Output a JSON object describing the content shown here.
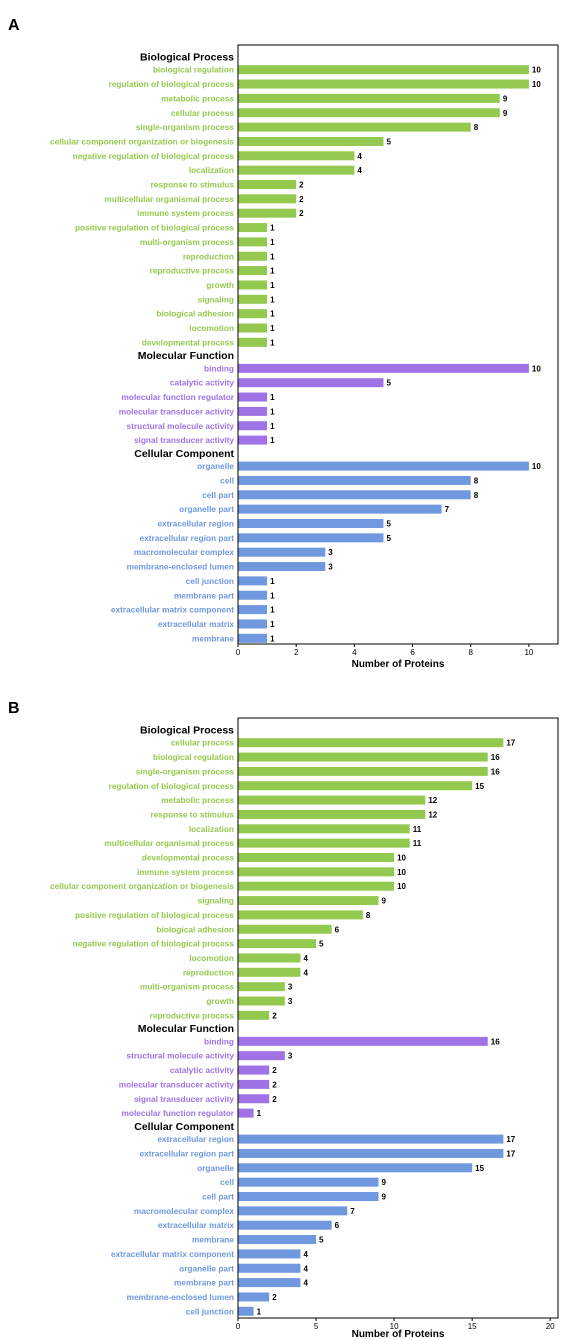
{
  "colors": {
    "Biological Process": "#94c94f",
    "Molecular Function": "#9f72e6",
    "Cellular Component": "#6f98df"
  },
  "chart_data": [
    {
      "panel_label": "A",
      "type": "bar",
      "orientation": "horizontal",
      "xlabel": "Number of Proteins",
      "xlim": [
        0,
        11
      ],
      "xticks": [
        0,
        2,
        4,
        6,
        8,
        10
      ],
      "groups": [
        {
          "name": "Biological Process",
          "categories": [
            "biological regulation",
            "regulation of biological process",
            "metabolic process",
            "cellular process",
            "single-organism process",
            "cellular component organization or biogenesis",
            "negative regulation of biological process",
            "localization",
            "response to stimulus",
            "multicellular organismal process",
            "immune system process",
            "positive regulation of biological process",
            "multi-organism process",
            "reproduction",
            "reproductive process",
            "growth",
            "signaling",
            "biological adhesion",
            "locomotion",
            "developmental process"
          ],
          "values": [
            10,
            10,
            9,
            9,
            8,
            5,
            4,
            4,
            2,
            2,
            2,
            1,
            1,
            1,
            1,
            1,
            1,
            1,
            1,
            1
          ]
        },
        {
          "name": "Molecular Function",
          "categories": [
            "binding",
            "catalytic activity",
            "molecular function regulator",
            "molecular transducer activity",
            "structural molecule activity",
            "signal transducer activity"
          ],
          "values": [
            10,
            5,
            1,
            1,
            1,
            1
          ]
        },
        {
          "name": "Cellular Component",
          "categories": [
            "organelle",
            "cell",
            "cell part",
            "organelle part",
            "extracellular region",
            "extracellular region part",
            "macromolecular complex",
            "membrane-enclosed lumen",
            "cell junction",
            "membrane part",
            "extracellular matrix component",
            "extracellular matrix",
            "membrane"
          ],
          "values": [
            10,
            8,
            8,
            7,
            5,
            5,
            3,
            3,
            1,
            1,
            1,
            1,
            1
          ]
        }
      ]
    },
    {
      "panel_label": "B",
      "type": "bar",
      "orientation": "horizontal",
      "xlabel": "Number of Proteins",
      "xlim": [
        0,
        20.5
      ],
      "xticks": [
        0,
        5,
        10,
        15,
        20
      ],
      "groups": [
        {
          "name": "Biological Process",
          "categories": [
            "cellular process",
            "biological regulation",
            "single-organism process",
            "regulation of biological process",
            "metabolic process",
            "response to stimulus",
            "localization",
            "multicellular organismal process",
            "developmental process",
            "immune system process",
            "cellular component organization or biogenesis",
            "signaling",
            "positive regulation of biological process",
            "biological adhesion",
            "negative regulation of biological process",
            "locomotion",
            "reproduction",
            "multi-organism process",
            "growth",
            "reproductive process"
          ],
          "values": [
            17,
            16,
            16,
            15,
            12,
            12,
            11,
            11,
            10,
            10,
            10,
            9,
            8,
            6,
            5,
            4,
            4,
            3,
            3,
            2
          ]
        },
        {
          "name": "Molecular Function",
          "categories": [
            "binding",
            "structural molecule activity",
            "catalytic activity",
            "molecular transducer activity",
            "signal transducer activity",
            "molecular function regulator"
          ],
          "values": [
            16,
            3,
            2,
            2,
            2,
            1
          ]
        },
        {
          "name": "Cellular Component",
          "categories": [
            "extracellular region",
            "extracellular region part",
            "organelle",
            "cell",
            "cell part",
            "macromolecular complex",
            "extracellular matrix",
            "membrane",
            "extracellular matrix component",
            "organelle part",
            "membrane part",
            "membrane-enclosed lumen",
            "cell junction"
          ],
          "values": [
            17,
            17,
            15,
            9,
            9,
            7,
            6,
            5,
            4,
            4,
            4,
            2,
            1
          ]
        }
      ]
    }
  ]
}
